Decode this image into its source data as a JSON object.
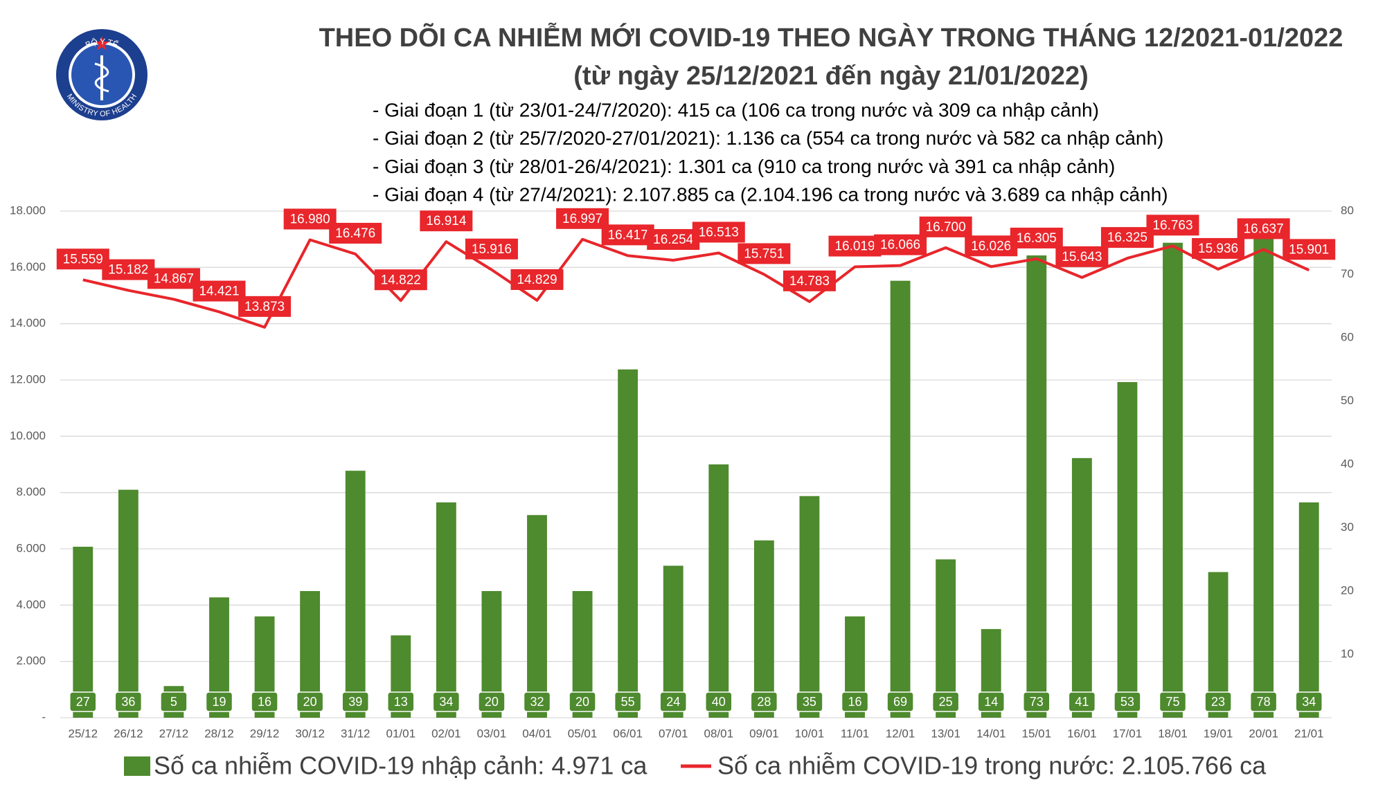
{
  "logo": {
    "top": "BỘ Y TẾ",
    "bottom": "MINISTRY OF HEALTH"
  },
  "chart_data": {
    "type": "combo",
    "title": "THEO DÕI CA NHIỄM MỚI COVID-19 THEO NGÀY TRONG THÁNG 12/2021-01/2022",
    "subtitle": "(từ ngày 25/12/2021 đến ngày 21/01/2022)",
    "notes": [
      "- Giai đoạn 1 (từ 23/01-24/7/2020): 415 ca (106 ca trong nước và 309 ca nhập cảnh)",
      "- Giai đoạn 2 (từ 25/7/2020-27/01/2021): 1.136 ca (554 ca trong nước và 582 ca nhập cảnh)",
      "- Giai đoạn 3 (từ 28/01-26/4/2021): 1.301 ca (910 ca trong nước và 391 ca nhập cảnh)",
      "- Giai đoạn 4 (từ 27/4/2021): 2.107.885 ca (2.104.196 ca trong nước và 3.689 ca nhập cảnh)"
    ],
    "categories": [
      "25/12",
      "26/12",
      "27/12",
      "28/12",
      "29/12",
      "30/12",
      "31/12",
      "01/01",
      "02/01",
      "03/01",
      "04/01",
      "05/01",
      "06/01",
      "07/01",
      "08/01",
      "09/01",
      "10/01",
      "11/01",
      "12/01",
      "13/01",
      "14/01",
      "15/01",
      "16/01",
      "17/01",
      "18/01",
      "19/01",
      "20/01",
      "21/01"
    ],
    "series": [
      {
        "name": "Số ca nhiễm COVID-19 nhập cảnh: 4.971 ca",
        "color": "#4e8a2e",
        "type": "bar",
        "axis": "y2",
        "values": [
          27,
          36,
          5,
          19,
          16,
          20,
          39,
          13,
          34,
          20,
          32,
          20,
          55,
          24,
          40,
          28,
          35,
          16,
          69,
          25,
          14,
          73,
          41,
          53,
          75,
          23,
          78,
          34
        ]
      },
      {
        "name": "Số ca nhiễm COVID-19 trong nước: 2.105.766 ca",
        "color": "#e8262b",
        "type": "line",
        "values": [
          15559,
          15182,
          14867,
          14421,
          13873,
          16980,
          16476,
          14822,
          16914,
          15916,
          14829,
          16997,
          16417,
          16254,
          16513,
          15751,
          14783,
          16019,
          16066,
          16700,
          16026,
          16305,
          15643,
          16325,
          16763,
          15936,
          16637,
          15901
        ],
        "value_labels": [
          "15.559",
          "15.182",
          "14.867",
          "14.421",
          "13.873",
          "16.980",
          "16.476",
          "14.822",
          "16.914",
          "15.916",
          "14.829",
          "16.997",
          "16.417",
          "16.254",
          "16.513",
          "15.751",
          "14.783",
          "16.019",
          "16.066",
          "16.700",
          "16.026",
          "16.305",
          "15.643",
          "16.325",
          "16.763",
          "15.936",
          "16.637",
          "15.901"
        ]
      }
    ],
    "ylim": [
      0,
      18000
    ],
    "yticks": [
      {
        "value": 0,
        "label": "-"
      },
      {
        "value": 2000,
        "label": "2.000"
      },
      {
        "value": 4000,
        "label": "4.000"
      },
      {
        "value": 6000,
        "label": "6.000"
      },
      {
        "value": 8000,
        "label": "8.000"
      },
      {
        "value": 10000,
        "label": "10.000"
      },
      {
        "value": 12000,
        "label": "12.000"
      },
      {
        "value": 14000,
        "label": "14.000"
      },
      {
        "value": 16000,
        "label": "16.000"
      },
      {
        "value": 18000,
        "label": "18.000"
      }
    ],
    "y2lim": [
      0,
      80
    ],
    "y2ticks": [
      10,
      20,
      30,
      40,
      50,
      60,
      70,
      80
    ],
    "grid": true
  }
}
